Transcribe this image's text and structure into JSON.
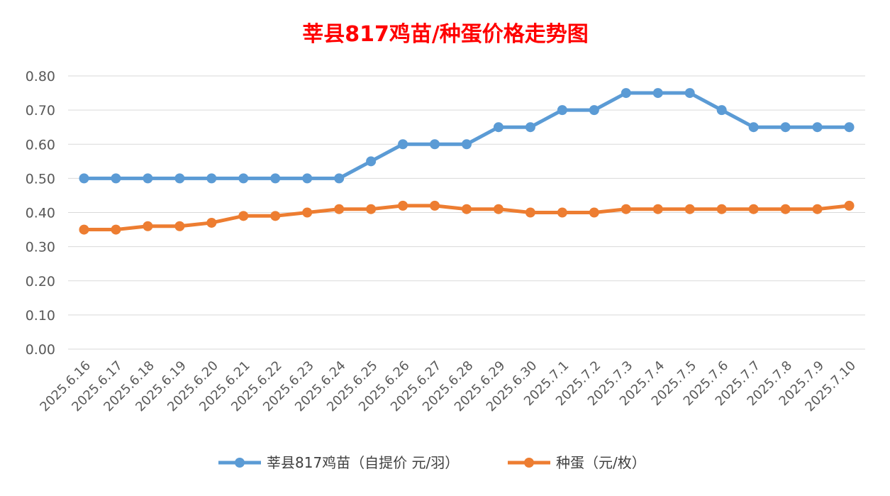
{
  "chart_data": {
    "type": "line",
    "title": "莘县817鸡苗/种蛋价格走势图",
    "xlabel": "",
    "ylabel": "",
    "categories": [
      "2025.6.16",
      "2025.6.17",
      "2025.6.18",
      "2025.6.19",
      "2025.6.20",
      "2025.6.21",
      "2025.6.22",
      "2025.6.23",
      "2025.6.24",
      "2025.6.25",
      "2025.6.26",
      "2025.6.27",
      "2025.6.28",
      "2025.6.29",
      "2025.6.30",
      "2025.7.1",
      "2025.7.2",
      "2025.7.3",
      "2025.7.4",
      "2025.7.5",
      "2025.7.6",
      "2025.7.7",
      "2025.7.8",
      "2025.7.9",
      "2025.7.10"
    ],
    "ylim": [
      0,
      0.8
    ],
    "yticks": [
      "0.00",
      "0.10",
      "0.20",
      "0.30",
      "0.40",
      "0.50",
      "0.60",
      "0.70",
      "0.80"
    ],
    "grid": true,
    "legend_position": "bottom",
    "series": [
      {
        "name": "莘县817鸡苗（自提价 元/羽）",
        "color": "#5b9bd5",
        "values": [
          0.5,
          0.5,
          0.5,
          0.5,
          0.5,
          0.5,
          0.5,
          0.5,
          0.5,
          0.55,
          0.6,
          0.6,
          0.6,
          0.65,
          0.65,
          0.7,
          0.7,
          0.75,
          0.75,
          0.75,
          0.7,
          0.65,
          0.65,
          0.65,
          0.65
        ]
      },
      {
        "name": "种蛋（元/枚）",
        "color": "#ed7d31",
        "values": [
          0.35,
          0.35,
          0.36,
          0.36,
          0.37,
          0.39,
          0.39,
          0.4,
          0.41,
          0.41,
          0.42,
          0.42,
          0.41,
          0.41,
          0.4,
          0.4,
          0.4,
          0.41,
          0.41,
          0.41,
          0.41,
          0.41,
          0.41,
          0.41,
          0.42
        ]
      }
    ],
    "title_color": "#ff0000"
  }
}
